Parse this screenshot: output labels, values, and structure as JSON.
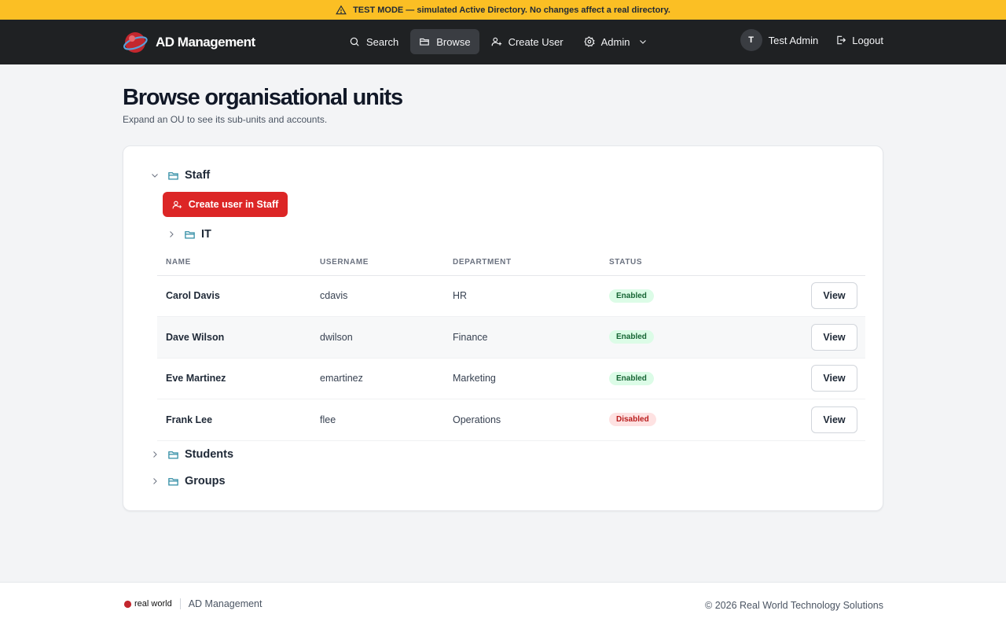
{
  "banner": {
    "text": "TEST MODE — simulated Active Directory. No changes affect a real directory.",
    "icon": "warning-icon",
    "color": "#fbbf24"
  },
  "nav": {
    "brand": "AD Management",
    "items": [
      {
        "label": "Search",
        "icon": "search-icon"
      },
      {
        "label": "Browse",
        "icon": "folder-icon",
        "active": true
      },
      {
        "label": "Create User",
        "icon": "user-plus-icon"
      },
      {
        "label": "Admin",
        "icon": "gear-icon"
      }
    ],
    "user": {
      "initial": "T",
      "name": "Test Admin"
    },
    "logout": "Logout"
  },
  "page": {
    "title": "Browse organisational units",
    "subtitle": "Expand an OU to see its sub-units and accounts."
  },
  "tree": {
    "staff": {
      "label": "Staff",
      "expanded": true
    },
    "create_button": "Create user in Staff",
    "it": {
      "label": "IT",
      "expanded": false
    },
    "students": {
      "label": "Students",
      "expanded": false
    },
    "groups": {
      "label": "Groups",
      "expanded": false
    }
  },
  "table": {
    "headers": [
      "NAME",
      "USERNAME",
      "DEPARTMENT",
      "STATUS"
    ],
    "rows": [
      {
        "name": "Carol Davis",
        "username": "cdavis",
        "department": "HR",
        "status": "Enabled",
        "action": "View"
      },
      {
        "name": "Dave Wilson",
        "username": "dwilson",
        "department": "Finance",
        "status": "Enabled",
        "action": "View"
      },
      {
        "name": "Eve Martinez",
        "username": "emartinez",
        "department": "Marketing",
        "status": "Enabled",
        "action": "View"
      },
      {
        "name": "Frank Lee",
        "username": "flee",
        "department": "Operations",
        "status": "Disabled",
        "action": "View"
      }
    ]
  },
  "footer": {
    "logo_text": "real world",
    "app": "AD Management",
    "copyright": "© 2026 Real World Technology Solutions"
  },
  "colors": {
    "nav_bg": "#1f2123",
    "accent_red": "#dc2626",
    "enabled": "#166534",
    "disabled": "#b91c1c"
  }
}
